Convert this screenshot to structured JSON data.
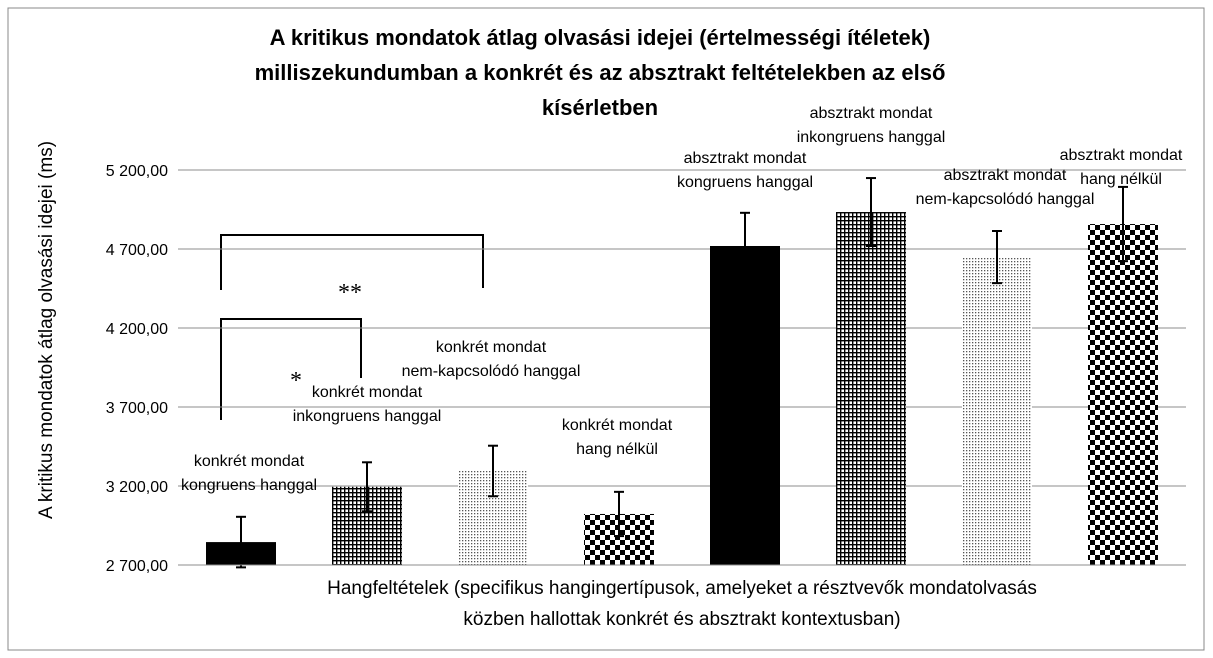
{
  "chart_data": {
    "type": "bar",
    "title": "A kritikus mondatok átlag olvasási idejei (értelmességi ítéletek)\nmilliszekundumban a konkrét és az absztrakt feltételekben az első\nkísérletben",
    "y_label": "A kritikus mondatok átlag olvasási idejei (ms)",
    "x_label": "Hangfeltételek (specifikus hangingertípusok, amelyeket a résztvevők mondatolvasás\nközben hallottak konkrét és absztrakt kontextusban)",
    "categories": [
      "konkrét mondat\nkongruens hanggal",
      "konkrét mondat\ninkongruens hanggal",
      "konkrét mondat\nnem-kapcsolódó hanggal",
      "konkrét mondat\nhang nélkül",
      "absztrakt mondat\nkongruens hanggal",
      "absztrakt mondat\ninkongruens hanggal",
      "absztrakt mondat\nnem-kapcsolódó hanggal",
      "absztrakt mondat\nhang nélkül"
    ],
    "values": [
      2845,
      3195,
      3295,
      3023,
      4719,
      4934,
      4649,
      4858
    ],
    "errors": [
      160,
      155,
      160,
      140,
      210,
      215,
      165,
      235
    ],
    "fills": [
      "#000000",
      "grid",
      "dots",
      "checker",
      "#000000",
      "grid",
      "dots",
      "checker"
    ],
    "annotations": [
      "*",
      "**"
    ],
    "ylim": [
      2700,
      5200
    ],
    "yticks": [
      {
        "value": 2700,
        "label": "2 700,00"
      },
      {
        "value": 3200,
        "label": "3 200,00"
      },
      {
        "value": 3700,
        "label": "3 700,00"
      },
      {
        "value": 4200,
        "label": "4 200,00"
      },
      {
        "value": 4700,
        "label": "4 700,00"
      },
      {
        "value": 5200,
        "label": "5 200,00"
      }
    ],
    "grid": true
  }
}
